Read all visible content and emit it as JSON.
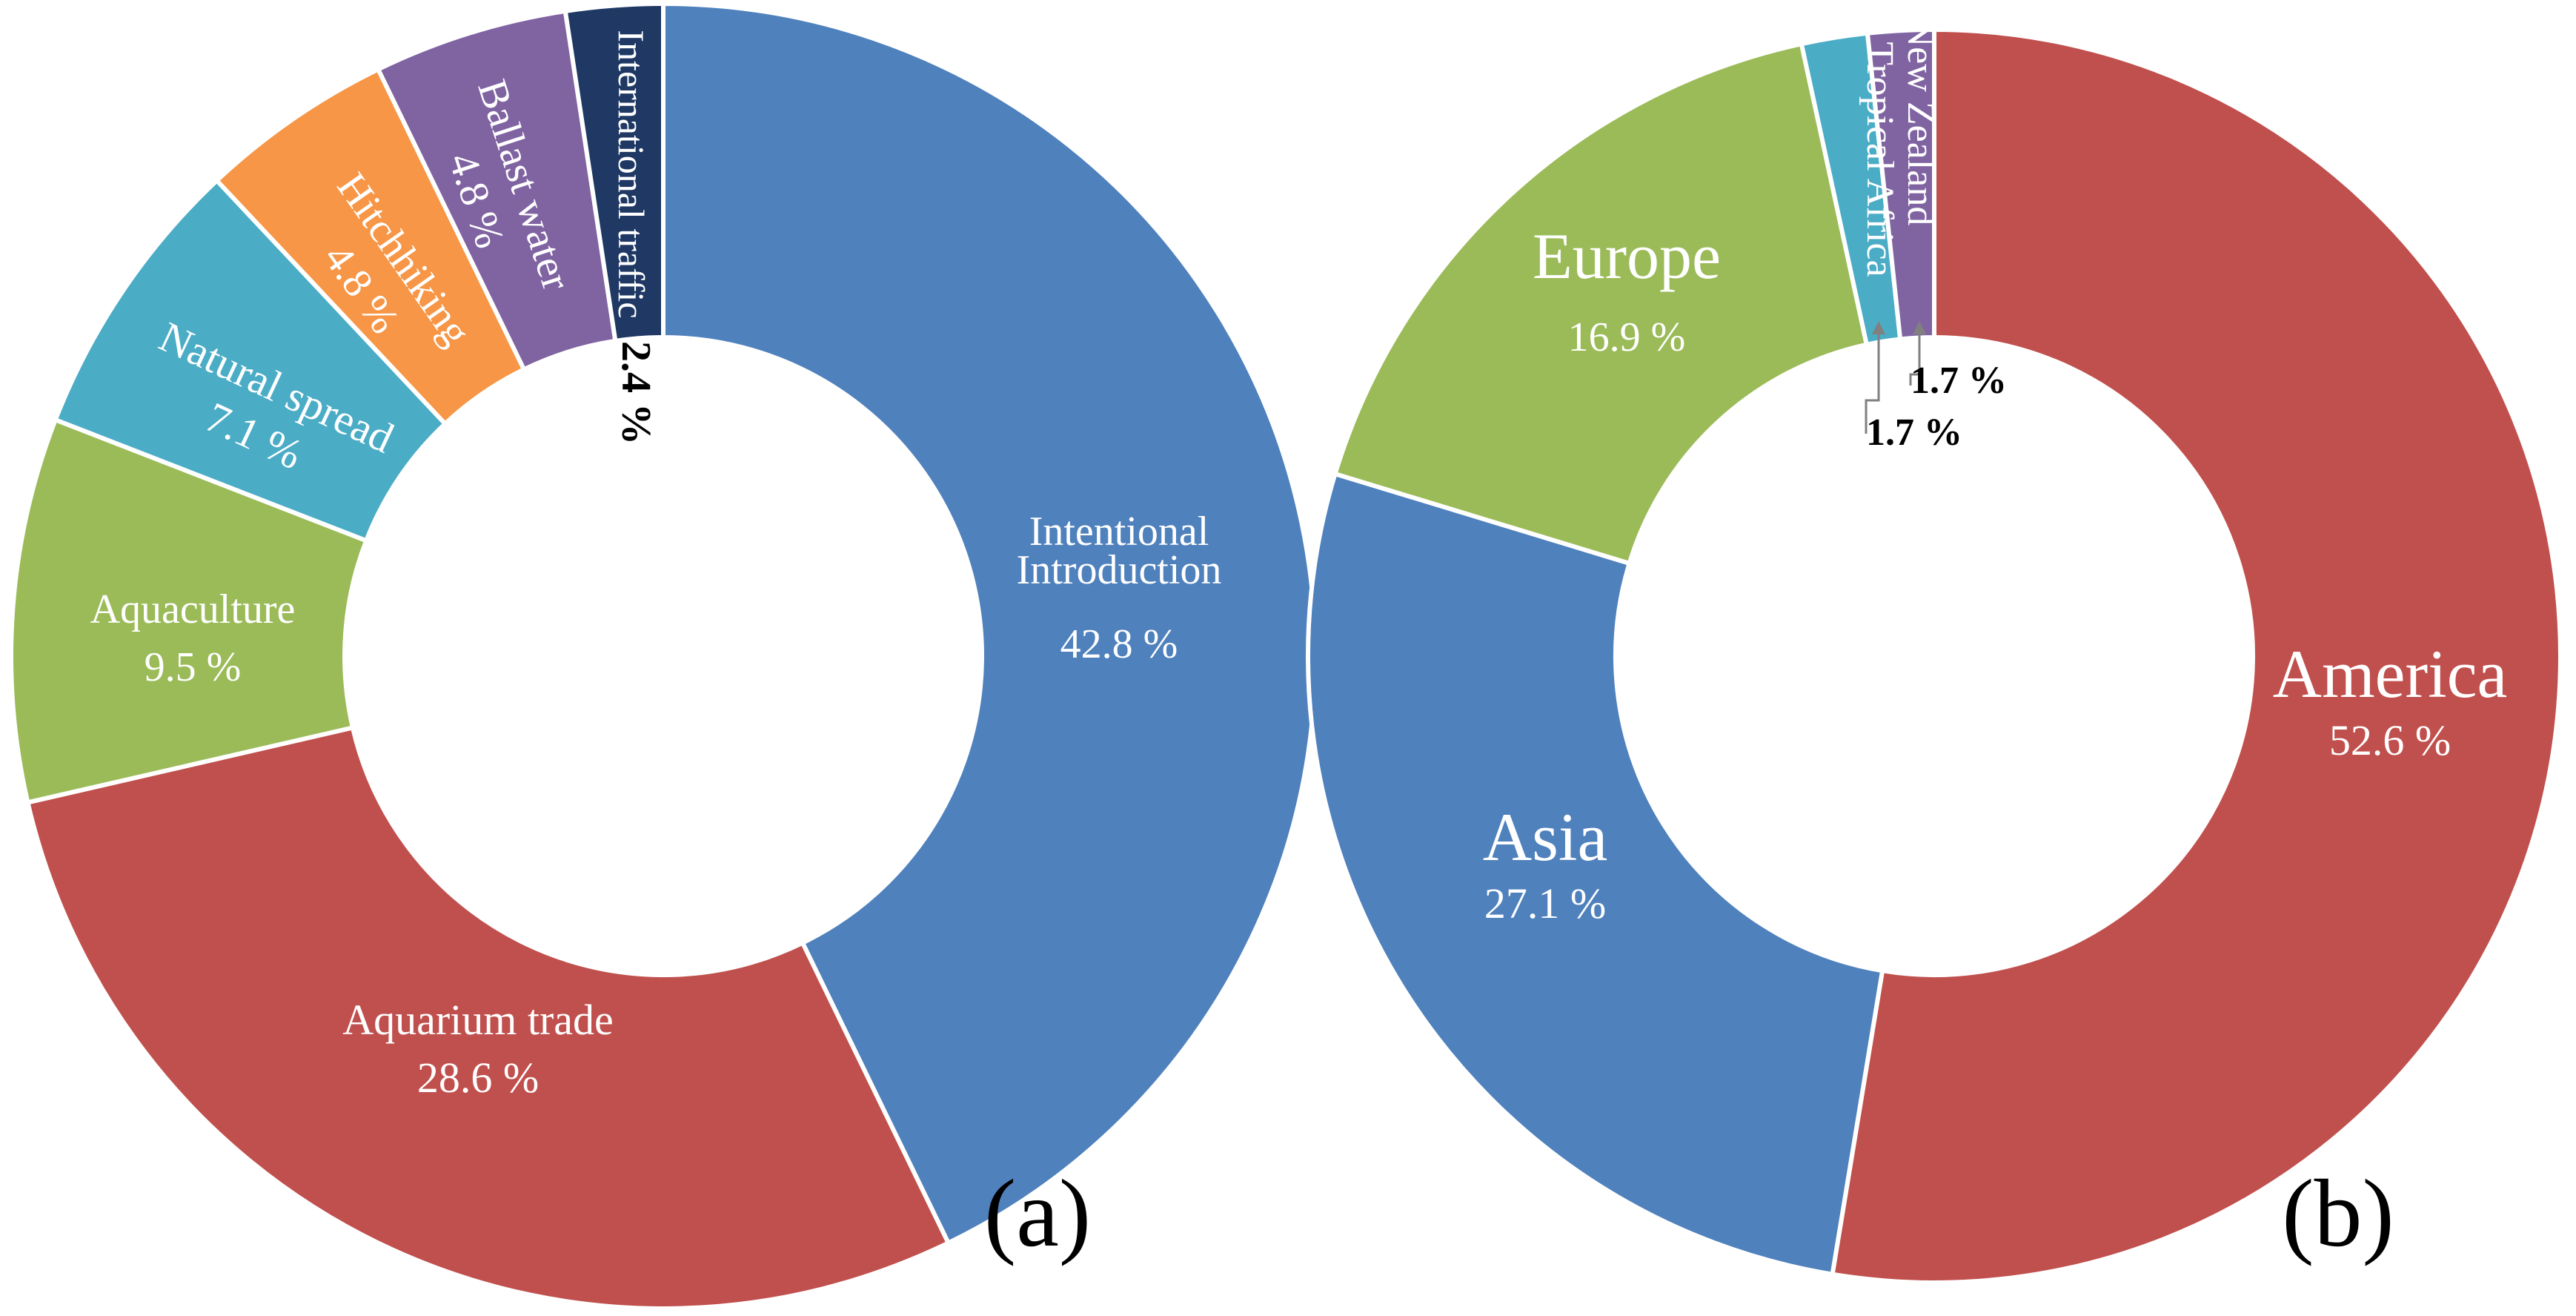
{
  "chart_data": [
    {
      "type": "pie",
      "panel_label": "(a)",
      "categories": [
        "Intentional Introduction",
        "Aquarium trade",
        "Aquaculture",
        "Natural spread",
        "Hitchhiking",
        "Ballast water",
        "International traffic"
      ],
      "values": [
        42.8,
        28.6,
        9.5,
        7.1,
        4.8,
        4.8,
        2.4
      ],
      "value_labels": [
        "42.8 %",
        "28.6 %",
        "9.5 %",
        "7.1 %",
        "4.8 %",
        "4.8 %",
        "2.4 %"
      ],
      "colors": [
        "#4f81bd",
        "#c0504d",
        "#9bbb59",
        "#4bacc6",
        "#f79646",
        "#8064a2",
        "#1f3864"
      ]
    },
    {
      "type": "pie",
      "panel_label": "(b)",
      "categories": [
        "America",
        "Asia",
        "Europe",
        "Tropical Africa",
        "New Zealand"
      ],
      "values": [
        52.6,
        27.1,
        16.9,
        1.7,
        1.7
      ],
      "value_labels": [
        "52.6 %",
        "27.1 %",
        "16.9 %",
        "1.7 %",
        "1.7 %"
      ],
      "colors": [
        "#c0504d",
        "#4f81bd",
        "#9bbb59",
        "#4bacc6",
        "#8064a2"
      ]
    }
  ]
}
